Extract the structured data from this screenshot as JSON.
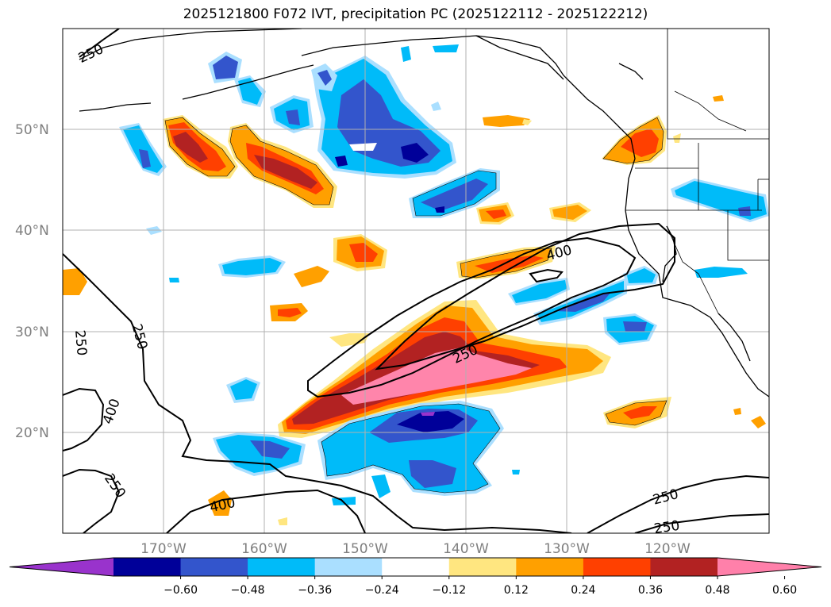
{
  "title": "2025121800 F072 IVT, precipitation PC (2025122112 - 2025122212)",
  "map": {
    "lon_ticks": [
      "170°W",
      "160°W",
      "150°W",
      "140°W",
      "130°W",
      "120°W"
    ],
    "lat_ticks": [
      "50°N",
      "40°N",
      "30°N",
      "20°N"
    ],
    "grid": true,
    "ivt_contour_levels": [
      "250",
      "400"
    ],
    "contour_labels": [
      {
        "text": "250",
        "name": "contour-label-250-nw"
      },
      {
        "text": "250",
        "name": "contour-label-250-w"
      },
      {
        "text": "250",
        "name": "contour-label-250-w2"
      },
      {
        "text": "400",
        "name": "contour-label-400-sw"
      },
      {
        "text": "250",
        "name": "contour-label-250-sw"
      },
      {
        "text": "400",
        "name": "contour-label-400-s"
      },
      {
        "text": "250",
        "name": "contour-label-250-center"
      },
      {
        "text": "400",
        "name": "contour-label-400-center"
      },
      {
        "text": "250",
        "name": "contour-label-250-se"
      },
      {
        "text": "250",
        "name": "contour-label-250-se2"
      }
    ]
  },
  "colorbar": {
    "ticks": [
      "−0.60",
      "−0.48",
      "−0.36",
      "−0.24",
      "−0.12",
      "0.12",
      "0.24",
      "0.36",
      "0.48",
      "0.60"
    ],
    "colors": [
      "#9933cc",
      "#000099",
      "#3355cc",
      "#00bbf9",
      "#aadfff",
      "#ffffff",
      "#ffe680",
      "#ffa000",
      "#ff4000",
      "#b22222",
      "#ff80aa"
    ],
    "extend": "both"
  },
  "palette": {
    "pink": "#ff85ab",
    "darkred": "#b22222",
    "red": "#ff4000",
    "orange": "#ffa000",
    "yellow": "#ffe680",
    "paleblue": "#aadfff",
    "cyan": "#00bbf9",
    "blue": "#3355cc",
    "navy": "#000099",
    "purple": "#9933cc"
  }
}
